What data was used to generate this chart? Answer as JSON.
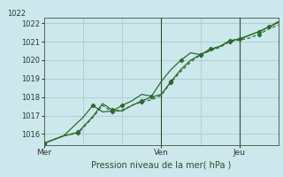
{
  "xlabel": "Pression niveau de la mer( hPa )",
  "background_color": "#cce8ec",
  "grid_color": "#aacccc",
  "line_color": "#2d6a2d",
  "vline_color": "#2d4a2d",
  "ylim": [
    1015.4,
    1022.3
  ],
  "yticks": [
    1016,
    1017,
    1018,
    1019,
    1020,
    1021,
    1022
  ],
  "top_cutoff_label": "1022",
  "xlim": [
    0,
    24
  ],
  "day_positions": [
    0,
    12,
    20
  ],
  "day_labels": [
    "Mer",
    "Ven",
    "Jeu"
  ],
  "vline_positions": [
    12,
    20
  ],
  "series1_x": [
    0,
    1,
    2,
    3.5,
    5,
    6,
    7,
    8,
    9,
    10,
    11,
    12,
    13,
    14,
    15,
    16,
    17,
    18,
    19,
    20,
    21,
    22,
    23,
    24
  ],
  "series1_y": [
    1015.5,
    1015.7,
    1015.9,
    1016.05,
    1016.9,
    1017.55,
    1017.2,
    1017.3,
    1017.55,
    1017.75,
    1017.85,
    1018.1,
    1018.8,
    1019.4,
    1019.9,
    1020.3,
    1020.5,
    1020.7,
    1021.0,
    1021.1,
    1021.2,
    1021.4,
    1021.7,
    1021.9
  ],
  "series2_x": [
    0,
    1,
    2,
    3.5,
    5,
    6,
    7,
    8,
    9,
    10,
    11,
    12,
    13,
    14,
    15,
    16,
    17,
    18,
    19,
    20,
    21,
    22,
    23,
    24
  ],
  "series2_y": [
    1015.5,
    1015.7,
    1015.9,
    1016.1,
    1016.95,
    1017.65,
    1017.3,
    1017.25,
    1017.55,
    1017.8,
    1018.0,
    1018.15,
    1018.85,
    1019.5,
    1020.0,
    1020.3,
    1020.55,
    1020.75,
    1021.05,
    1021.15,
    1021.35,
    1021.55,
    1021.8,
    1022.05
  ],
  "series3_x": [
    0,
    2,
    4,
    5,
    6,
    7,
    8,
    9,
    10,
    11,
    12,
    13,
    14,
    15,
    16,
    17,
    18,
    19,
    20,
    21,
    22,
    23,
    24
  ],
  "series3_y": [
    1015.5,
    1015.9,
    1016.9,
    1017.55,
    1017.2,
    1017.25,
    1017.55,
    1017.8,
    1018.15,
    1018.05,
    1018.85,
    1019.5,
    1020.0,
    1020.4,
    1020.3,
    1020.6,
    1020.75,
    1021.05,
    1021.15,
    1021.35,
    1021.55,
    1021.8,
    1022.1
  ]
}
